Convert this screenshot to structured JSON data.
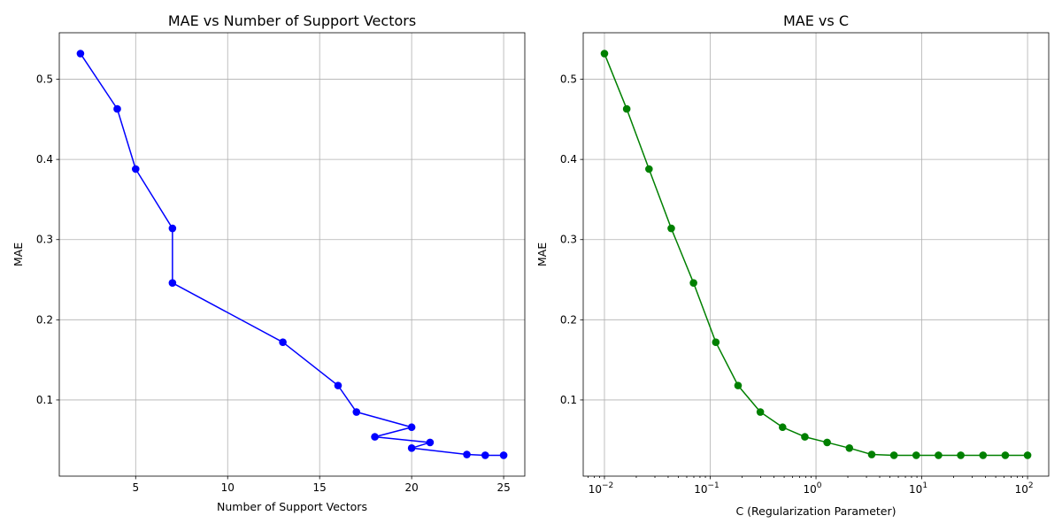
{
  "chart_data": [
    {
      "type": "line",
      "title": "MAE vs Number of Support Vectors",
      "xlabel": "Number of Support Vectors",
      "ylabel": "MAE",
      "x_scale": "linear",
      "xlim": [
        0.85,
        26.15
      ],
      "ylim": [
        0.005,
        0.558
      ],
      "xticks": [
        5,
        10,
        15,
        20,
        25
      ],
      "xtick_labels": [
        "5",
        "10",
        "15",
        "20",
        "25"
      ],
      "yticks": [
        0.1,
        0.2,
        0.3,
        0.4,
        0.5
      ],
      "ytick_labels": [
        "0.1",
        "0.2",
        "0.3",
        "0.4",
        "0.5"
      ],
      "grid": true,
      "series": [
        {
          "color": "#0000ff",
          "marker": "circle",
          "x": [
            2,
            4,
            5,
            7,
            7,
            13,
            16,
            17,
            20,
            18,
            21,
            20,
            23,
            24,
            25
          ],
          "y": [
            0.532,
            0.463,
            0.388,
            0.314,
            0.246,
            0.172,
            0.118,
            0.085,
            0.066,
            0.054,
            0.047,
            0.04,
            0.032,
            0.031,
            0.031
          ]
        }
      ]
    },
    {
      "type": "line",
      "title": "MAE vs C",
      "xlabel": "C (Regularization Parameter)",
      "ylabel": "MAE",
      "x_scale": "log",
      "xlim": [
        0.0063,
        158.5
      ],
      "ylim": [
        0.005,
        0.558
      ],
      "xticks": [
        0.01,
        0.1,
        1,
        10,
        100
      ],
      "xtick_labels": [
        {
          "base": "10",
          "exp": "−2"
        },
        {
          "base": "10",
          "exp": "−1"
        },
        {
          "base": "10",
          "exp": "0"
        },
        {
          "base": "10",
          "exp": "1"
        },
        {
          "base": "10",
          "exp": "2"
        }
      ],
      "yticks": [
        0.1,
        0.2,
        0.3,
        0.4,
        0.5
      ],
      "ytick_labels": [
        "0.1",
        "0.2",
        "0.3",
        "0.4",
        "0.5"
      ],
      "grid": true,
      "series": [
        {
          "color": "#008000",
          "marker": "circle",
          "x": [
            0.01,
            0.01624,
            0.02637,
            0.04281,
            0.06952,
            0.1129,
            0.1833,
            0.2976,
            0.4833,
            0.7848,
            1.274,
            2.069,
            3.36,
            5.456,
            8.859,
            14.38,
            23.36,
            37.93,
            61.58,
            100
          ],
          "y": [
            0.532,
            0.463,
            0.388,
            0.314,
            0.246,
            0.172,
            0.118,
            0.085,
            0.066,
            0.054,
            0.047,
            0.04,
            0.032,
            0.031,
            0.031,
            0.031,
            0.031,
            0.031,
            0.031,
            0.031
          ]
        }
      ]
    }
  ]
}
